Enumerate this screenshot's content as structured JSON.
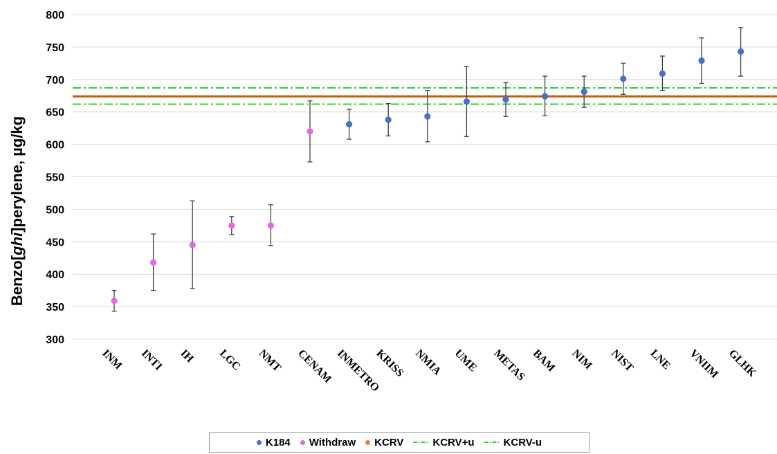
{
  "colors": {
    "k184": "#4472C4",
    "withdraw": "#E06AE0",
    "kcrv": "#C55A11",
    "kcrv_legend": "#ED7D31",
    "kcrv_u": "#33CC33",
    "errorbar": "#404040",
    "grid": "#d9d9d9"
  },
  "chart_data": {
    "type": "scatter",
    "ylabel_pre": "Benzo[",
    "ylabel_italic": "ghi",
    "ylabel_post": "]perylene, µg/kg",
    "ylim": [
      300,
      800
    ],
    "yticks": [
      300,
      350,
      400,
      450,
      500,
      550,
      600,
      650,
      700,
      750,
      800
    ],
    "grid": "horizontal",
    "legend_position": "bottom",
    "categories": [
      "INM",
      "INTI",
      "IH",
      "LGC",
      "NMT",
      "CENAM",
      "INMETRO",
      "KRISS",
      "NMIA",
      "UME",
      "METAS",
      "BAM",
      "NIM",
      "NIST",
      "LNE",
      "VNIIM",
      "GLHK"
    ],
    "series": [
      {
        "name": "K184",
        "color": "k184",
        "points": [
          {
            "x": "INMETRO",
            "y": 631,
            "lo": 608,
            "hi": 654
          },
          {
            "x": "KRISS",
            "y": 638,
            "lo": 613,
            "hi": 663
          },
          {
            "x": "NMIA",
            "y": 643,
            "lo": 604,
            "hi": 683
          },
          {
            "x": "UME",
            "y": 666,
            "lo": 612,
            "hi": 720
          },
          {
            "x": "METAS",
            "y": 669,
            "lo": 643,
            "hi": 695
          },
          {
            "x": "BAM",
            "y": 674,
            "lo": 644,
            "hi": 705
          },
          {
            "x": "NIM",
            "y": 681,
            "lo": 657,
            "hi": 705
          },
          {
            "x": "NIST",
            "y": 701,
            "lo": 677,
            "hi": 725
          },
          {
            "x": "LNE",
            "y": 709,
            "lo": 683,
            "hi": 736
          },
          {
            "x": "VNIIM",
            "y": 729,
            "lo": 694,
            "hi": 764
          },
          {
            "x": "GLHK",
            "y": 743,
            "lo": 705,
            "hi": 780
          }
        ]
      },
      {
        "name": "Withdraw",
        "color": "withdraw",
        "points": [
          {
            "x": "INM",
            "y": 359,
            "lo": 343,
            "hi": 375
          },
          {
            "x": "INTI",
            "y": 418,
            "lo": 375,
            "hi": 462
          },
          {
            "x": "IH",
            "y": 445,
            "lo": 378,
            "hi": 513
          },
          {
            "x": "LGC",
            "y": 475,
            "lo": 461,
            "hi": 489
          },
          {
            "x": "NMT",
            "y": 475,
            "lo": 444,
            "hi": 507
          },
          {
            "x": "CENAM",
            "y": 620,
            "lo": 573,
            "hi": 667
          }
        ]
      }
    ],
    "lines": [
      {
        "name": "KCRV",
        "y": 674,
        "style": "solid",
        "color": "kcrv"
      },
      {
        "name": "KCRV+u",
        "y": 687,
        "style": "dashdot",
        "color": "kcrv_u"
      },
      {
        "name": "KCRV-u",
        "y": 662,
        "style": "dashdot",
        "color": "kcrv_u"
      }
    ]
  },
  "legend": {
    "k184": "K184",
    "withdraw": "Withdraw",
    "kcrv": "KCRV",
    "kcrv_plus": "KCRV+u",
    "kcrv_minus": "KCRV-u"
  }
}
